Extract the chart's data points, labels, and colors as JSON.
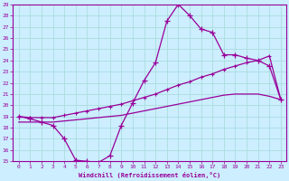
{
  "xlabel": "Windchill (Refroidissement éolien,°C)",
  "bg_color": "#cceeff",
  "grid_color": "#aadddd",
  "line_color": "#990099",
  "x": [
    0,
    1,
    2,
    3,
    4,
    5,
    6,
    7,
    8,
    9,
    10,
    11,
    12,
    13,
    14,
    15,
    16,
    17,
    18,
    19,
    20,
    21,
    22,
    23
  ],
  "line1": [
    19.0,
    18.8,
    18.5,
    18.2,
    17.0,
    15.1,
    15.0,
    14.9,
    15.5,
    18.2,
    20.2,
    22.2,
    23.8,
    27.5,
    29.0,
    28.0,
    26.8,
    26.5,
    24.5,
    24.5,
    24.2,
    24.0,
    23.5,
    20.5
  ],
  "line2": [
    19.0,
    18.9,
    18.9,
    18.9,
    19.1,
    19.3,
    19.5,
    19.7,
    19.9,
    20.1,
    20.4,
    20.7,
    21.0,
    21.4,
    21.8,
    22.1,
    22.5,
    22.8,
    23.2,
    23.5,
    23.8,
    24.0,
    24.4,
    20.5
  ],
  "line3": [
    18.5,
    18.5,
    18.5,
    18.5,
    18.6,
    18.7,
    18.8,
    18.9,
    19.0,
    19.1,
    19.3,
    19.5,
    19.7,
    19.9,
    20.1,
    20.3,
    20.5,
    20.7,
    20.9,
    21.0,
    21.0,
    21.0,
    20.8,
    20.5
  ],
  "ylim": [
    15,
    29
  ],
  "xlim": [
    -0.5,
    23.5
  ],
  "yticks": [
    15,
    16,
    17,
    18,
    19,
    20,
    21,
    22,
    23,
    24,
    25,
    26,
    27,
    28,
    29
  ],
  "xticks": [
    0,
    1,
    2,
    3,
    4,
    5,
    6,
    7,
    8,
    9,
    10,
    11,
    12,
    13,
    14,
    15,
    16,
    17,
    18,
    19,
    20,
    21,
    22,
    23
  ]
}
